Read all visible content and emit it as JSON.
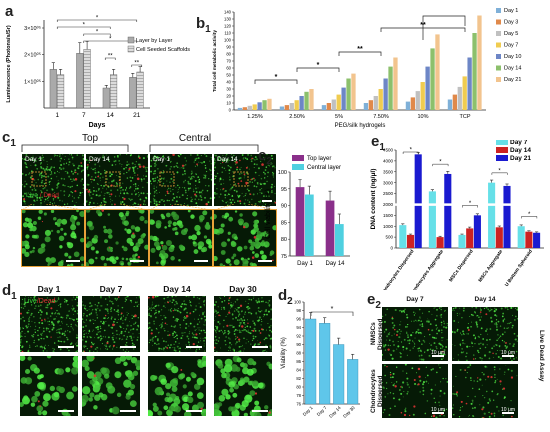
{
  "panel_labels": {
    "a": "a",
    "b1": "b",
    "c1": "c",
    "c2": "c",
    "d1": "d",
    "d2": "d",
    "e1": "e",
    "e2": "e",
    "sub1": "1",
    "sub2": "2"
  },
  "chart_data": [
    {
      "id": "a",
      "type": "bar",
      "categories": [
        "1",
        "7",
        "14",
        "21"
      ],
      "series": [
        {
          "name": "Layer by Layer",
          "values": [
            1.45,
            2.05,
            0.75,
            1.15
          ],
          "errors": [
            0.25,
            0.4,
            0.1,
            0.15
          ],
          "color": "#aaaaaa"
        },
        {
          "name": "Cell Seeded Scaffolds",
          "values": [
            1.25,
            2.2,
            1.25,
            1.35
          ],
          "errors": [
            0.2,
            0.3,
            0.2,
            0.2
          ],
          "color": "#d4d4d4"
        }
      ],
      "xlabel": "Days",
      "ylabel": "Luminescence (Photons/s/Sr)",
      "ytick_labels": [
        "1×10⁰⁵",
        "2×10⁰⁵",
        "3×10⁰⁵"
      ],
      "ytick_values": [
        1,
        2,
        3
      ],
      "ylim": [
        0,
        3.3
      ],
      "significance": [
        "*",
        "*",
        "*",
        "*",
        "**",
        "**"
      ]
    },
    {
      "id": "b1",
      "type": "bar",
      "categories": [
        "1.25%",
        "2.50%",
        "5%",
        "7.50%",
        "10%",
        "TCP"
      ],
      "series": [
        {
          "name": "Day 1",
          "values": [
            3,
            5,
            7,
            10,
            12,
            15
          ],
          "color": "#7fb0d8"
        },
        {
          "name": "Day 3",
          "values": [
            4,
            7,
            10,
            14,
            18,
            22
          ],
          "color": "#e0894a"
        },
        {
          "name": "Day 5",
          "values": [
            6,
            10,
            15,
            20,
            27,
            33
          ],
          "color": "#c0c0c0"
        },
        {
          "name": "Day 7",
          "values": [
            8,
            14,
            22,
            30,
            40,
            48
          ],
          "color": "#f0cc50"
        },
        {
          "name": "Day 10",
          "values": [
            11,
            20,
            32,
            45,
            62,
            75
          ],
          "color": "#6d86c6"
        },
        {
          "name": "Day 14",
          "values": [
            14,
            26,
            45,
            62,
            88,
            110
          ],
          "color": "#8cc06c"
        },
        {
          "name": "Day 21",
          "values": [
            16,
            30,
            52,
            75,
            108,
            135
          ],
          "color": "#f2c48e"
        }
      ],
      "legend": [
        "Day 1",
        "Day 3",
        "Day 5",
        "Day 7",
        "Day 10",
        "Day 14",
        "Day 21"
      ],
      "xlabel": "PEG/silk hydrogels",
      "ylabel": "Total cell metabolic activity",
      "ytick_labels": [
        "0",
        "10",
        "20",
        "30",
        "40",
        "50",
        "60",
        "70",
        "80",
        "90",
        "100",
        "110",
        "120",
        "130",
        "140"
      ],
      "ylim": [
        0,
        140
      ],
      "significance": [
        "*",
        "*",
        "**",
        "**"
      ]
    },
    {
      "id": "c2",
      "type": "bar",
      "categories": [
        "Day 1",
        "Day 14"
      ],
      "series": [
        {
          "name": "Top layer",
          "values": [
            95.5,
            91.5
          ],
          "errors": [
            2.2,
            2.8
          ],
          "color": "#8a2f8a"
        },
        {
          "name": "Central layer",
          "values": [
            93.3,
            84.5
          ],
          "errors": [
            2.5,
            3.0
          ],
          "color": "#4fd0e0"
        }
      ],
      "ylabel": "Cell viability (%)",
      "ytick_labels": [
        "75",
        "80",
        "85",
        "90",
        "95",
        "100"
      ],
      "ylim": [
        75,
        100
      ]
    },
    {
      "id": "d2",
      "type": "bar",
      "categories": [
        "Day 1",
        "Day 7",
        "Day 14",
        "Day 30"
      ],
      "series": [
        {
          "name": "Viability",
          "values": [
            96,
            95,
            90,
            86.5
          ],
          "errors": [
            1.5,
            1.3,
            1.5,
            1.2
          ],
          "color": "#5fc6ea"
        }
      ],
      "ylabel": "Viability (%)",
      "ytick_labels": [
        "76",
        "78",
        "80",
        "82",
        "84",
        "86",
        "88",
        "90",
        "92",
        "94",
        "96",
        "98",
        "100"
      ],
      "ylim": [
        76,
        100
      ],
      "significance": [
        "*"
      ]
    },
    {
      "id": "e1",
      "type": "bar",
      "categories": [
        "Chondrocytes Dispersed",
        "Chondrocytes Aggregate",
        "MSCs Dispersed",
        "MSCs Aggregate",
        "U Bottom Spheroid"
      ],
      "series": [
        {
          "name": "Day 7",
          "values": [
            1050,
            2600,
            600,
            3000,
            1000
          ],
          "errors": [
            60,
            80,
            40,
            120,
            60
          ],
          "color": "#66e0e8"
        },
        {
          "name": "Day 14",
          "values": [
            600,
            500,
            900,
            950,
            750
          ],
          "errors": [
            40,
            40,
            60,
            60,
            40
          ],
          "color": "#cc2222"
        },
        {
          "name": "Day 21",
          "values": [
            4300,
            3400,
            1500,
            2850,
            700
          ],
          "errors": [
            80,
            120,
            70,
            90,
            40
          ],
          "color": "#1a1ad0"
        }
      ],
      "ylabel": "DNA content (ng/μl)",
      "ytick_labels": [
        "0",
        "500",
        "1000",
        "1500",
        "2000",
        "2500",
        "3000",
        "3500",
        "4000",
        "4500"
      ],
      "ylim": [
        0,
        4500
      ],
      "significance": [
        "*",
        "*",
        "*",
        "*",
        "*"
      ]
    }
  ],
  "c1": {
    "top_header": "Top",
    "central_header": "Central",
    "tiles": [
      "Day 1",
      "Day 14",
      "Day 1",
      "Day 14"
    ],
    "live": "Live",
    "slash": " / ",
    "dead": "Dead"
  },
  "d1": {
    "tiles": [
      "Day 1",
      "Day 7",
      "Day 14",
      "Day 30"
    ],
    "live": "Live",
    "slash": "/",
    "dead": "Dead"
  },
  "e2": {
    "columns": [
      "Day 7",
      "Day 14"
    ],
    "rows": [
      "NMSCs Dispersed",
      "Chondrocytes Dispersed"
    ],
    "side": "Live Dead Assay",
    "scale": "10 μm"
  },
  "colors": {
    "live": "#3ed33e",
    "dead": "#e03434",
    "background": "#061a06"
  }
}
